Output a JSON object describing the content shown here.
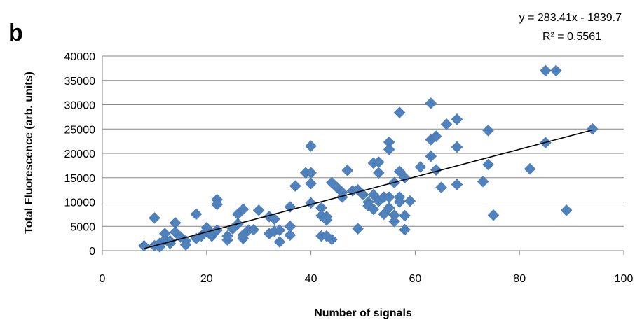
{
  "figure": {
    "panel_label": "b"
  },
  "chart_data": {
    "type": "scatter",
    "title": "",
    "xlabel": "Number of signals",
    "ylabel": "Total Fluorescence (arb. units)",
    "xlim": [
      0,
      100
    ],
    "ylim": [
      0,
      40000
    ],
    "x_ticks": [
      "0",
      "20",
      "40",
      "60",
      "80",
      "100"
    ],
    "y_ticks": [
      "0",
      "5000",
      "10000",
      "15000",
      "20000",
      "25000",
      "30000",
      "35000",
      "40000"
    ],
    "grid": "horizontal",
    "legend": "none",
    "marker_color": "#4F81BD",
    "marker_shape": "diamond",
    "trendline": {
      "type": "linear",
      "slope": 283.41,
      "intercept": -1839.7,
      "x_range": [
        8,
        94
      ],
      "equation": "y = 283.41x - 1839.7",
      "r_squared": "R² = 0.5561",
      "color": "#000000"
    },
    "points": [
      [
        8,
        1000
      ],
      [
        10,
        6700
      ],
      [
        10,
        1000
      ],
      [
        11,
        1500
      ],
      [
        11,
        800
      ],
      [
        12,
        3500
      ],
      [
        12,
        2200
      ],
      [
        13,
        1500
      ],
      [
        13,
        2000
      ],
      [
        14,
        5700
      ],
      [
        14,
        3800
      ],
      [
        15,
        2800
      ],
      [
        16,
        2000
      ],
      [
        16,
        1200
      ],
      [
        18,
        7500
      ],
      [
        18,
        2500
      ],
      [
        19,
        3000
      ],
      [
        20,
        4000
      ],
      [
        20,
        4700
      ],
      [
        21,
        3000
      ],
      [
        21,
        3500
      ],
      [
        22,
        10500
      ],
      [
        22,
        9500
      ],
      [
        22,
        4200
      ],
      [
        24,
        2200
      ],
      [
        24,
        3000
      ],
      [
        25,
        4500
      ],
      [
        26,
        5500
      ],
      [
        26,
        7500
      ],
      [
        27,
        8500
      ],
      [
        27,
        2500
      ],
      [
        27,
        3200
      ],
      [
        28,
        4200
      ],
      [
        29,
        4300
      ],
      [
        30,
        8300
      ],
      [
        32,
        7000
      ],
      [
        32,
        3500
      ],
      [
        33,
        6500
      ],
      [
        33,
        4000
      ],
      [
        34,
        1800
      ],
      [
        34,
        4200
      ],
      [
        36,
        9000
      ],
      [
        36,
        5000
      ],
      [
        36,
        3200
      ],
      [
        37,
        13300
      ],
      [
        39,
        16000
      ],
      [
        40,
        21500
      ],
      [
        40,
        16000
      ],
      [
        40,
        13800
      ],
      [
        40,
        9800
      ],
      [
        42,
        8800
      ],
      [
        42,
        7200
      ],
      [
        42,
        3000
      ],
      [
        43,
        7000
      ],
      [
        43,
        6300
      ],
      [
        43,
        3000
      ],
      [
        44,
        14000
      ],
      [
        44,
        2300
      ],
      [
        45,
        13000
      ],
      [
        46,
        11000
      ],
      [
        46,
        12000
      ],
      [
        47,
        16500
      ],
      [
        48,
        12300
      ],
      [
        49,
        12500
      ],
      [
        49,
        4500
      ],
      [
        50,
        11500
      ],
      [
        51,
        10000
      ],
      [
        51,
        9200
      ],
      [
        52,
        18000
      ],
      [
        52,
        11500
      ],
      [
        52,
        8500
      ],
      [
        53,
        18200
      ],
      [
        53,
        16000
      ],
      [
        53,
        10200
      ],
      [
        54,
        7500
      ],
      [
        54,
        11000
      ],
      [
        55,
        22300
      ],
      [
        55,
        20800
      ],
      [
        55,
        11000
      ],
      [
        55,
        8800
      ],
      [
        56,
        14000
      ],
      [
        56,
        7300
      ],
      [
        56,
        6000
      ],
      [
        57,
        28400
      ],
      [
        57,
        16300
      ],
      [
        57,
        11000
      ],
      [
        57,
        10000
      ],
      [
        58,
        15000
      ],
      [
        58,
        7200
      ],
      [
        58,
        4300
      ],
      [
        59,
        10200
      ],
      [
        61,
        17200
      ],
      [
        63,
        30300
      ],
      [
        63,
        22800
      ],
      [
        63,
        19400
      ],
      [
        64,
        23500
      ],
      [
        64,
        16600
      ],
      [
        65,
        13000
      ],
      [
        66,
        26000
      ],
      [
        68,
        27000
      ],
      [
        68,
        21300
      ],
      [
        68,
        13600
      ],
      [
        73,
        14200
      ],
      [
        74,
        24700
      ],
      [
        74,
        17700
      ],
      [
        75,
        7300
      ],
      [
        82,
        16800
      ],
      [
        85,
        37000
      ],
      [
        85,
        22200
      ],
      [
        87,
        37000
      ],
      [
        89,
        8300
      ],
      [
        94,
        25000
      ]
    ]
  }
}
